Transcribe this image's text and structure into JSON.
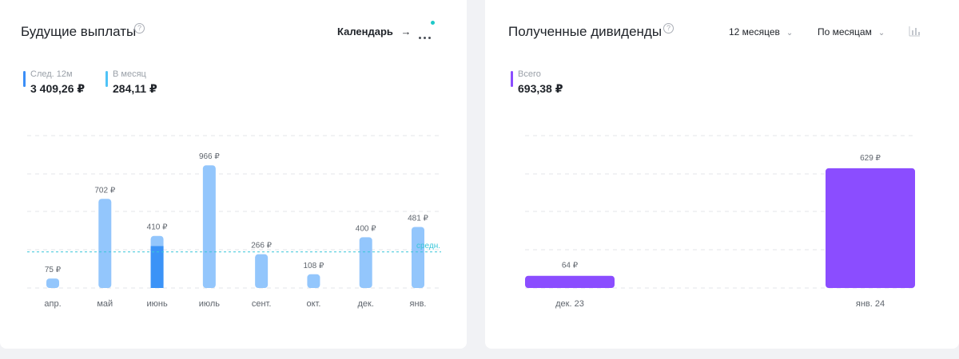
{
  "future_payouts": {
    "title": "Будущие выплаты",
    "help_icon": "?",
    "calendar_link": "Календарь",
    "calendar_arrow": "→",
    "stats": [
      {
        "label": "След. 12м",
        "value": "3 409,26 ₽",
        "color": "#3b8ef7"
      },
      {
        "label": "В месяц",
        "value": "284,11 ₽",
        "color": "#4fc3f7"
      }
    ],
    "colors": {
      "bar": "#93c6fc",
      "bar_highlight": "#3b93f7",
      "avg_line": "#38c6d9"
    }
  },
  "received_dividends": {
    "title": "Полученные дивиденды",
    "help_icon": "?",
    "period_dropdown": "12 месяцев",
    "grouping_dropdown": "По месяцам",
    "stats": [
      {
        "label": "Всего",
        "value": "693,38 ₽",
        "color": "#8b4dff"
      }
    ],
    "colors": {
      "bar": "#8b4dff"
    }
  },
  "chart_data": [
    {
      "type": "bar",
      "categories": [
        "апр.",
        "май",
        "июнь",
        "июль",
        "сент.",
        "окт.",
        "дек.",
        "янв."
      ],
      "values": [
        75,
        702,
        410,
        966,
        266,
        108,
        400,
        481
      ],
      "labels": [
        "75 ₽",
        "702 ₽",
        "410 ₽",
        "966 ₽",
        "266 ₽",
        "108 ₽",
        "400 ₽",
        "481 ₽"
      ],
      "highlighted_index": 2,
      "highlighted_partial_value": 330,
      "average_label": "средн.",
      "average_value": 284.11,
      "ylim": [
        0,
        1200
      ],
      "grid": true
    },
    {
      "type": "bar",
      "categories": [
        "дек. 23",
        "янв. 24"
      ],
      "values": [
        64,
        629
      ],
      "labels": [
        "64 ₽",
        "629 ₽"
      ],
      "ylim": [
        0,
        800
      ],
      "grid": true
    }
  ]
}
